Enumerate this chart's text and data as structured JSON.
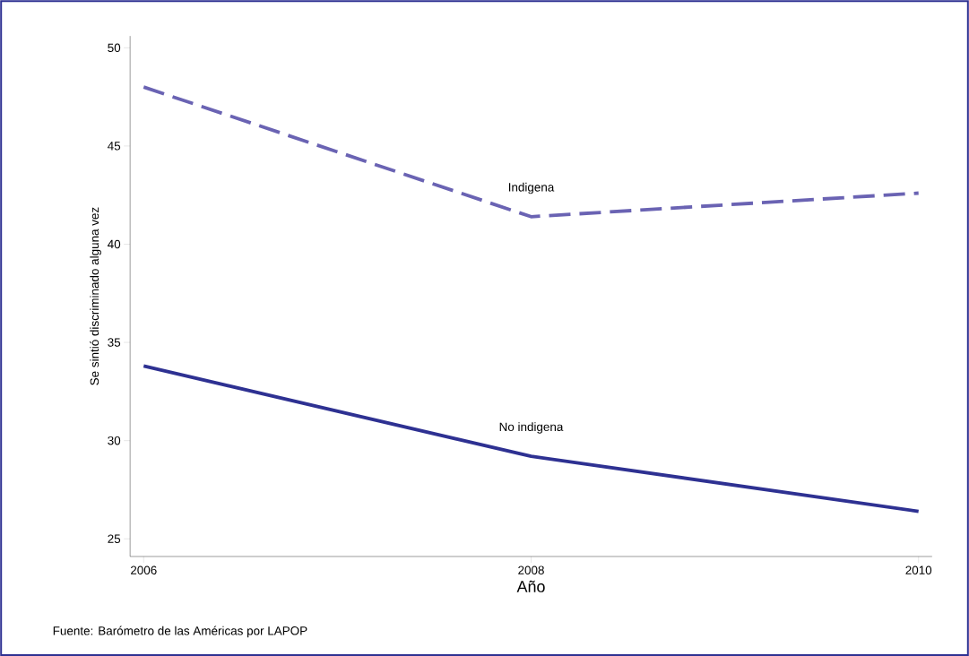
{
  "chart_data": {
    "type": "line",
    "xlabel": "Año",
    "ylabel": "Se sintió discriminado alguna vez",
    "x": [
      2006,
      2008,
      2010
    ],
    "series": [
      {
        "name": "Indigena",
        "color": "#6a63b3",
        "line_style": "dashed",
        "values": [
          48.0,
          41.4,
          42.6
        ]
      },
      {
        "name": "No indigena",
        "color": "#2e3192",
        "line_style": "solid",
        "values": [
          33.8,
          29.2,
          26.4
        ]
      }
    ],
    "xlim": [
      2005.93,
      2010.07
    ],
    "ylim": [
      24.1,
      50.6
    ],
    "xticks": [
      2006,
      2008,
      2010
    ],
    "yticks": [
      25,
      30,
      35,
      40,
      45,
      50
    ],
    "grid": false,
    "legend": false,
    "marker": "none",
    "annotations": [
      "Fuente: Barómetro de las Américas por LAPOP"
    ]
  }
}
